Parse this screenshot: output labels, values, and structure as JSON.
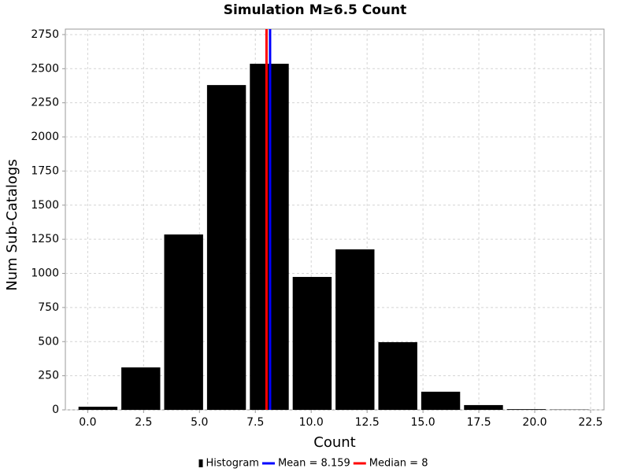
{
  "chart_data": {
    "type": "histogram",
    "title": "Simulation M≥6.5 Count",
    "xlabel": "Count",
    "ylabel": "Num Sub-Catalogs",
    "bins": [
      -0.5,
      1.4167,
      3.3333,
      5.25,
      7.1667,
      9.0833,
      11,
      12.9167,
      14.8333,
      16.75,
      18.6667,
      20.5833,
      22.5
    ],
    "counts": [
      23,
      311,
      1285,
      2380,
      2536,
      974,
      1176,
      496,
      133,
      35,
      5,
      2
    ],
    "color": "#000000",
    "name": "Histogram",
    "vlines": [
      {
        "value": 8.159,
        "label": "Mean = 8.159",
        "color": "#0000ff"
      },
      {
        "value": 8,
        "label": "Median = 8",
        "color": "#ff0000"
      }
    ],
    "xlim": [
      -1.0,
      23.1
    ],
    "ylim": [
      0,
      2790
    ],
    "xticks": [
      {
        "value": 0,
        "label": "0.0"
      },
      2.5,
      {
        "value": 5,
        "label": "5.0"
      },
      7.5,
      {
        "value": 10,
        "label": "10.0"
      },
      12.5,
      {
        "value": 15,
        "label": "15.0"
      },
      17.5,
      {
        "value": 20,
        "label": "20.0"
      },
      22.5
    ],
    "yticks": [
      0,
      250,
      500,
      750,
      1000,
      1250,
      1500,
      1750,
      2000,
      2250,
      2500,
      2750
    ],
    "grid": true
  }
}
